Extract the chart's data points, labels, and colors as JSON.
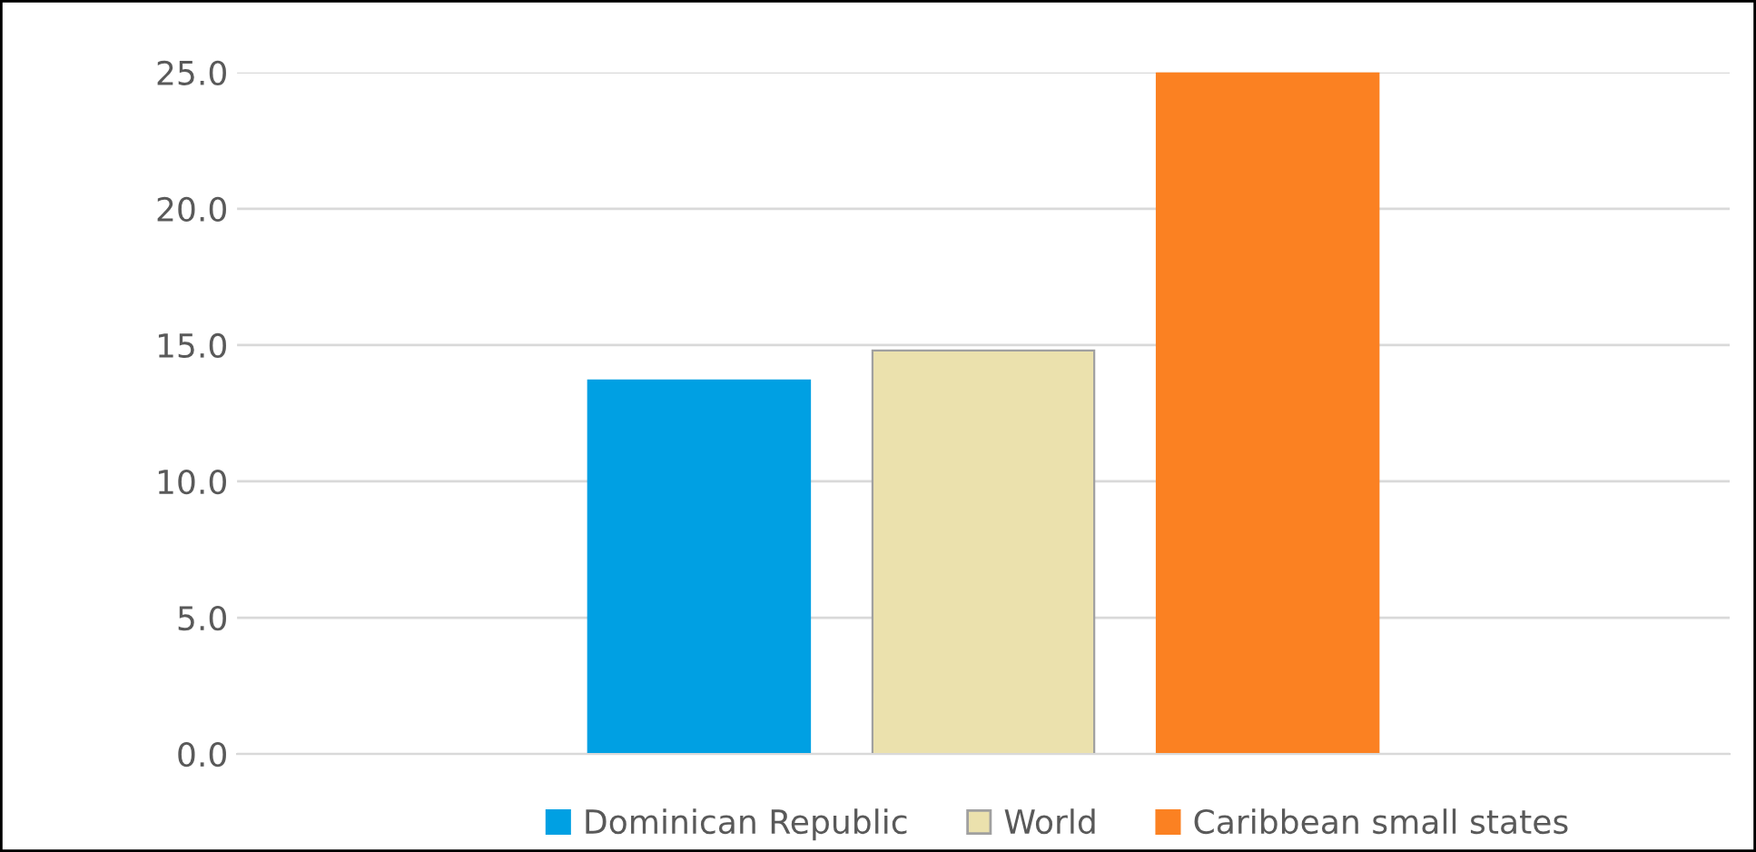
{
  "chart_data": {
    "type": "bar",
    "categories": [
      null
    ],
    "series": [
      {
        "name": "Dominican Republic",
        "color": "#00a0e3",
        "values": [
          13.7
        ]
      },
      {
        "name": "World",
        "color": "#ebe1ad",
        "values": [
          14.8
        ]
      },
      {
        "name": "Caribbean small states",
        "color": "#fb8122",
        "values": [
          25.0
        ]
      }
    ],
    "ylim": [
      0,
      25.0
    ],
    "yticks": [
      {
        "value": 0,
        "label": "0.0"
      },
      {
        "value": 5,
        "label": "5.0"
      },
      {
        "value": 10,
        "label": "10.0"
      },
      {
        "value": 15,
        "label": "15.0"
      },
      {
        "value": 20,
        "label": "20.0"
      },
      {
        "value": 25,
        "label": "25.0"
      }
    ],
    "grid": "y",
    "legend": "bottom"
  }
}
